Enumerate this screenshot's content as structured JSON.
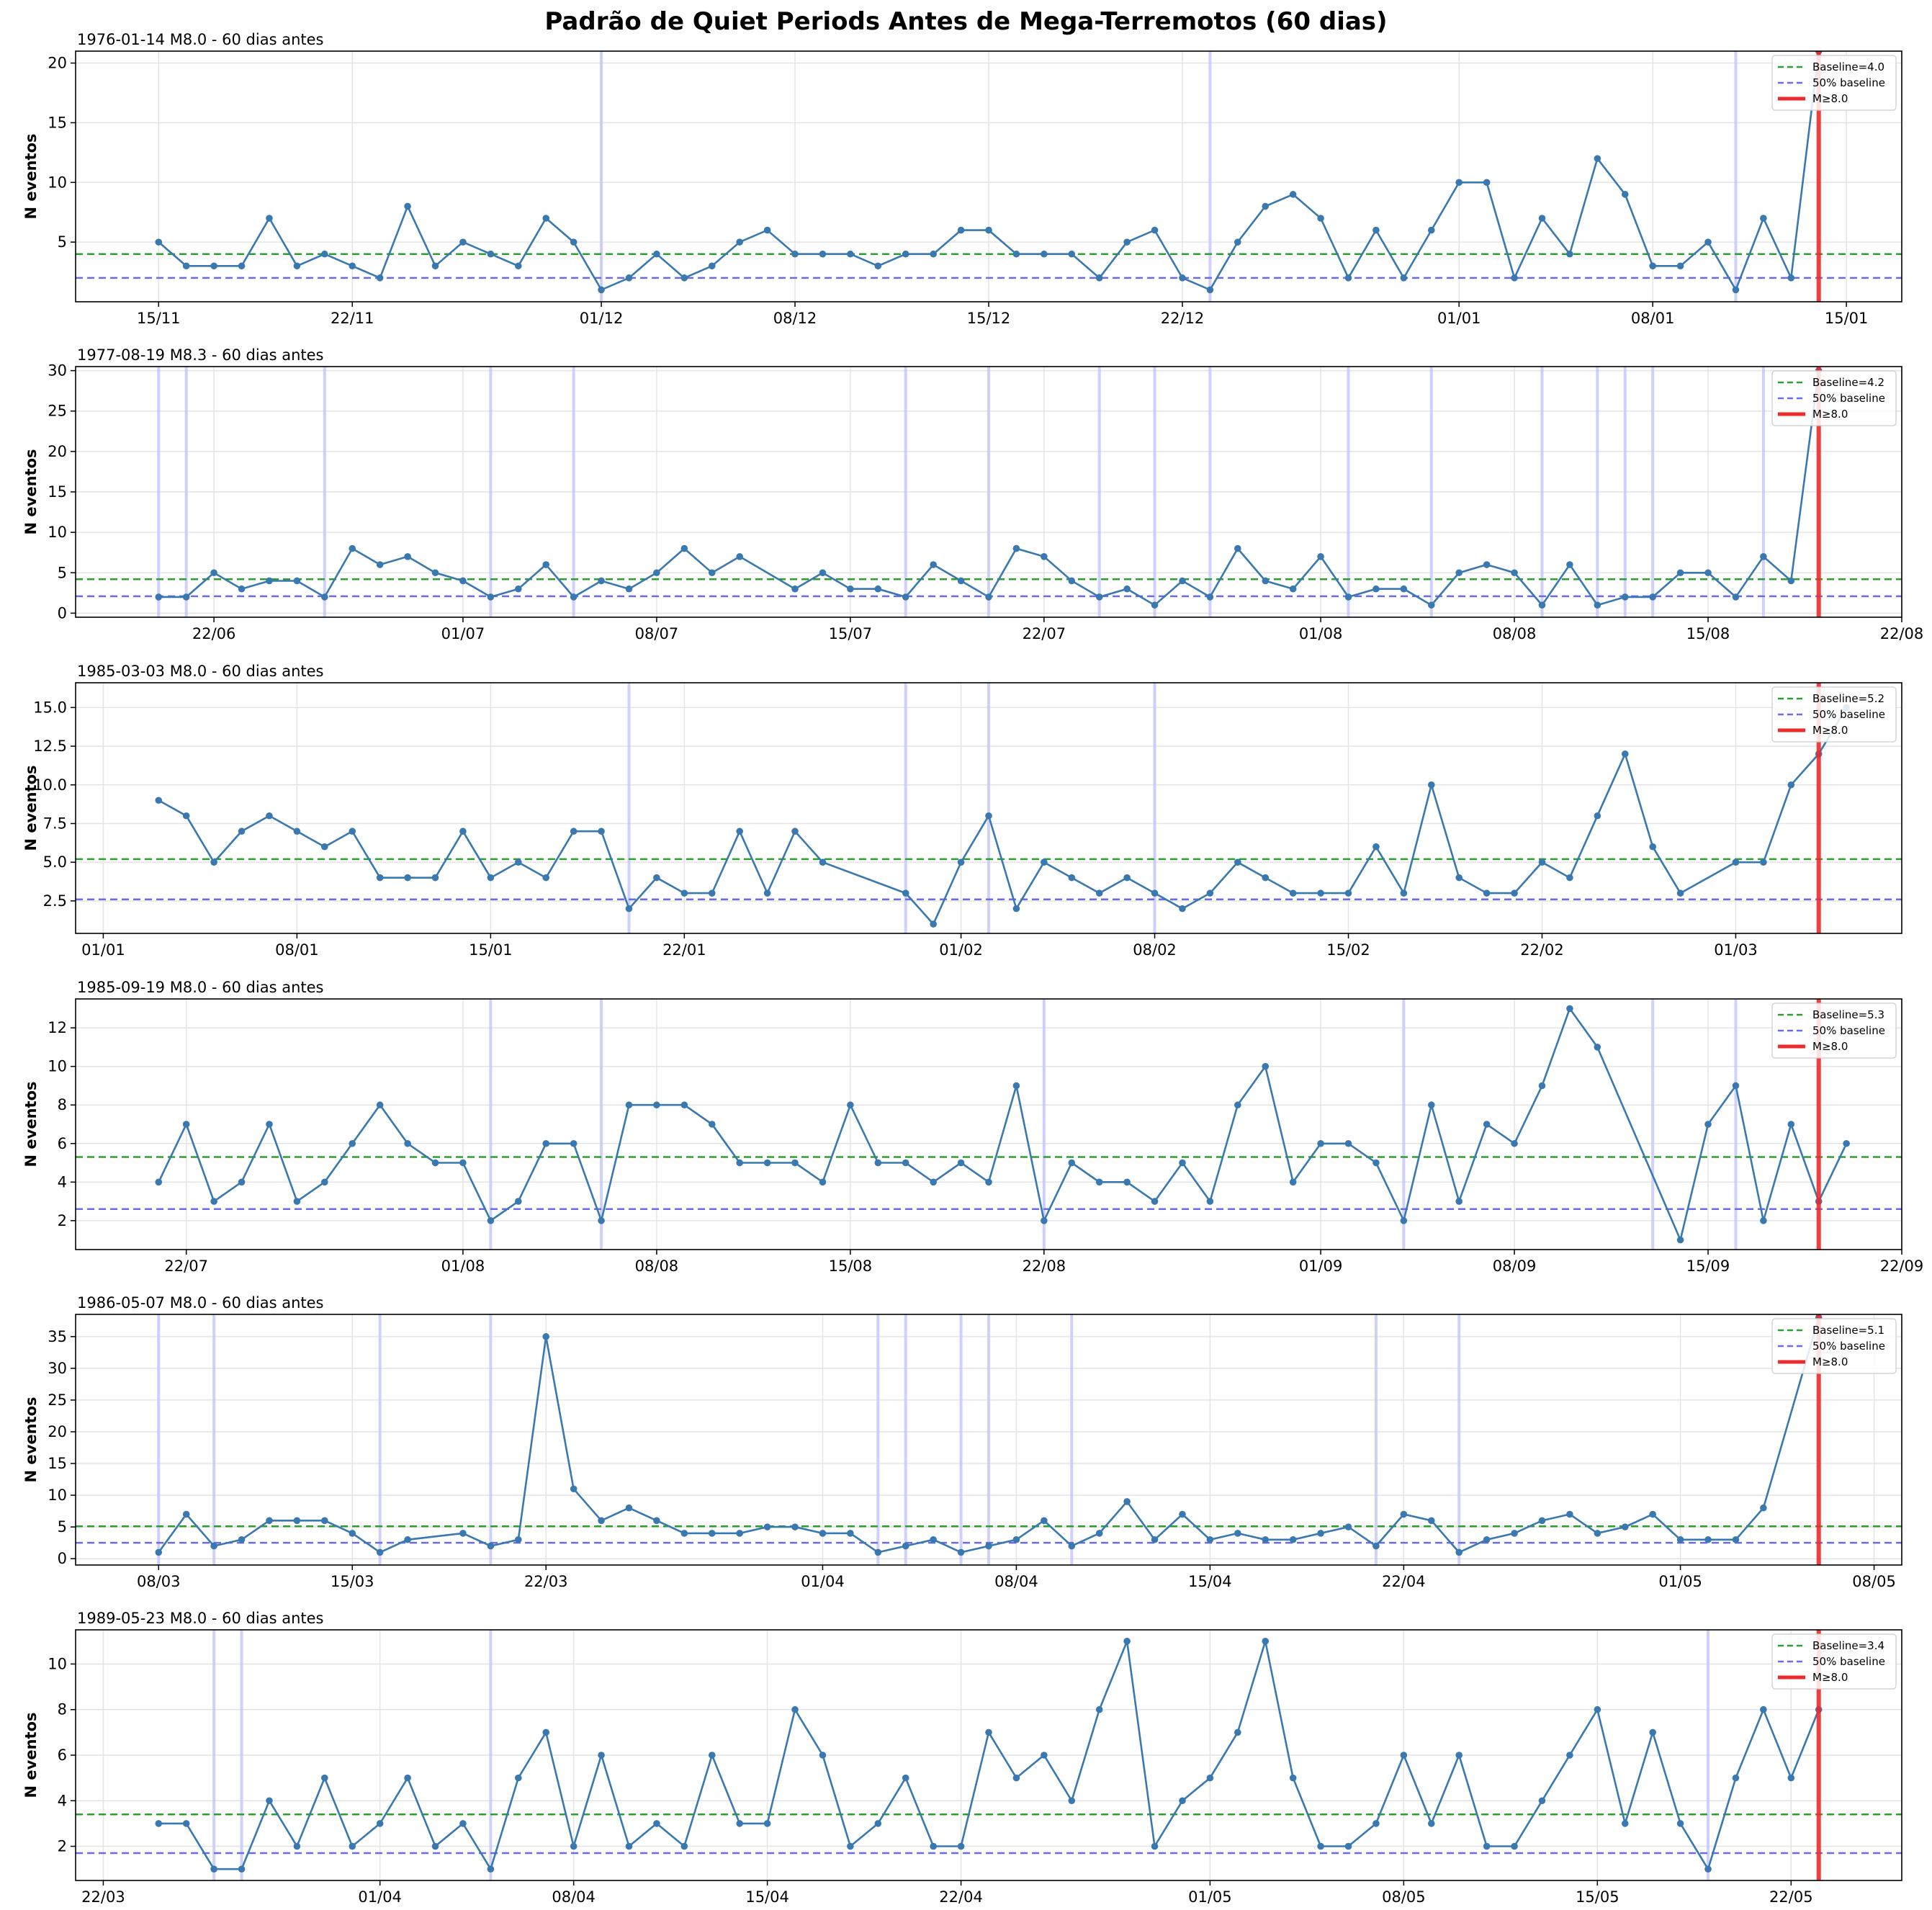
{
  "title": "Padrão de Quiet Periods Antes de Mega-Terremotos (60 dias)",
  "ylabel": "N eventos",
  "legend": {
    "baseline_prefix": "Baseline=",
    "half": "50% baseline",
    "event": "M≥8.0"
  },
  "colors": {
    "series": "#3a78b0",
    "baseline": "#2ca02c",
    "half": "#6b6bef",
    "event": "#ee2b2b",
    "quiet": "#c8c8ff",
    "grid": "#e4e4e4"
  },
  "chart_data": [
    {
      "type": "line",
      "title": "1976-01-14 M8.0 - 60 dias antes",
      "x_start": "1975-11-15",
      "event_day": 60,
      "x_range": [
        -3,
        63
      ],
      "ylim": [
        0,
        21
      ],
      "yticks": [
        5,
        10,
        15,
        20
      ],
      "xticks": [
        {
          "day": 0,
          "label": "15/11"
        },
        {
          "day": 7,
          "label": "22/11"
        },
        {
          "day": 16,
          "label": "01/12"
        },
        {
          "day": 23,
          "label": "08/12"
        },
        {
          "day": 30,
          "label": "15/12"
        },
        {
          "day": 37,
          "label": "22/12"
        },
        {
          "day": 47,
          "label": "01/01"
        },
        {
          "day": 54,
          "label": "08/01"
        },
        {
          "day": 61,
          "label": "15/01"
        }
      ],
      "baseline": 4.0,
      "half_baseline": 2.0,
      "quiet_days": [
        16,
        38,
        57
      ],
      "values": [
        5,
        3,
        3,
        3,
        7,
        3,
        4,
        3,
        2,
        8,
        3,
        5,
        4,
        3,
        7,
        5,
        1,
        2,
        4,
        2,
        3,
        5,
        6,
        4,
        4,
        4,
        3,
        4,
        4,
        6,
        6,
        4,
        4,
        4,
        2,
        5,
        6,
        2,
        1,
        5,
        8,
        9,
        7,
        2,
        6,
        2,
        6,
        10,
        10,
        2,
        7,
        4,
        12,
        9,
        3,
        3,
        5,
        1,
        7,
        2,
        21
      ]
    },
    {
      "type": "line",
      "title": "1977-08-19 M8.3 - 60 dias antes",
      "x_start": "1977-06-20",
      "event_day": 60,
      "x_range": [
        -3,
        63
      ],
      "ylim": [
        -0.5,
        30.5
      ],
      "yticks": [
        0,
        5,
        10,
        15,
        20,
        25,
        30
      ],
      "xticks": [
        {
          "day": 2,
          "label": "22/06"
        },
        {
          "day": 11,
          "label": "01/07"
        },
        {
          "day": 18,
          "label": "08/07"
        },
        {
          "day": 25,
          "label": "15/07"
        },
        {
          "day": 32,
          "label": "22/07"
        },
        {
          "day": 42,
          "label": "01/08"
        },
        {
          "day": 49,
          "label": "08/08"
        },
        {
          "day": 56,
          "label": "15/08"
        },
        {
          "day": 63,
          "label": "22/08"
        }
      ],
      "baseline": 4.2,
      "half_baseline": 2.1,
      "quiet_days": [
        0,
        1,
        6,
        12,
        15,
        27,
        30,
        34,
        36,
        38,
        43,
        46,
        50,
        52,
        53,
        54,
        58
      ],
      "values": [
        2,
        2,
        5,
        3,
        4,
        4,
        2,
        8,
        6,
        7,
        5,
        4,
        2,
        3,
        6,
        2,
        4,
        3,
        5,
        8,
        5,
        7,
        null,
        3,
        5,
        3,
        3,
        2,
        6,
        4,
        2,
        8,
        7,
        4,
        2,
        3,
        1,
        4,
        2,
        8,
        4,
        3,
        7,
        2,
        3,
        3,
        1,
        5,
        6,
        5,
        1,
        6,
        1,
        2,
        2,
        5,
        5,
        2,
        7,
        4,
        30
      ]
    },
    {
      "type": "line",
      "title": "1985-03-03 M8.0 - 60 dias antes",
      "x_start": "1985-01-03",
      "event_day": 60,
      "x_range": [
        -3,
        63
      ],
      "ylim": [
        0.4,
        16.6
      ],
      "yticks": [
        2.5,
        5.0,
        7.5,
        10.0,
        12.5,
        15.0
      ],
      "xticks": [
        {
          "day": -2,
          "label": "01/01"
        },
        {
          "day": 5,
          "label": "08/01"
        },
        {
          "day": 12,
          "label": "15/01"
        },
        {
          "day": 19,
          "label": "22/01"
        },
        {
          "day": 29,
          "label": "01/02"
        },
        {
          "day": 36,
          "label": "08/02"
        },
        {
          "day": 43,
          "label": "15/02"
        },
        {
          "day": 50,
          "label": "22/02"
        },
        {
          "day": 57,
          "label": "01/03"
        }
      ],
      "baseline": 5.2,
      "half_baseline": 2.6,
      "quiet_days": [
        17,
        27,
        30,
        36
      ],
      "values": [
        9,
        8,
        5,
        7,
        8,
        7,
        6,
        7,
        4,
        4,
        4,
        7,
        4,
        5,
        4,
        7,
        7,
        2,
        4,
        3,
        3,
        7,
        3,
        7,
        5,
        null,
        null,
        3,
        1,
        5,
        8,
        2,
        5,
        4,
        3,
        4,
        3,
        2,
        3,
        5,
        4,
        3,
        3,
        3,
        6,
        3,
        10,
        4,
        3,
        3,
        5,
        4,
        8,
        12,
        6,
        3,
        null,
        5,
        5,
        10,
        12,
        15
      ]
    },
    {
      "type": "line",
      "title": "1985-09-19 M8.0 - 60 dias antes",
      "x_start": "1985-07-21",
      "event_day": 60,
      "x_range": [
        -3,
        63
      ],
      "ylim": [
        0.5,
        13.5
      ],
      "yticks": [
        2,
        4,
        6,
        8,
        10,
        12
      ],
      "xticks": [
        {
          "day": 1,
          "label": "22/07"
        },
        {
          "day": 11,
          "label": "01/08"
        },
        {
          "day": 18,
          "label": "08/08"
        },
        {
          "day": 25,
          "label": "15/08"
        },
        {
          "day": 32,
          "label": "22/08"
        },
        {
          "day": 42,
          "label": "01/09"
        },
        {
          "day": 49,
          "label": "08/09"
        },
        {
          "day": 56,
          "label": "15/09"
        },
        {
          "day": 63,
          "label": "22/09"
        }
      ],
      "baseline": 5.3,
      "half_baseline": 2.6,
      "quiet_days": [
        12,
        16,
        32,
        45,
        54,
        57
      ],
      "values": [
        4,
        7,
        3,
        4,
        7,
        3,
        4,
        6,
        8,
        6,
        5,
        5,
        2,
        3,
        6,
        6,
        2,
        8,
        8,
        8,
        7,
        5,
        5,
        5,
        4,
        8,
        5,
        5,
        4,
        5,
        4,
        9,
        2,
        5,
        4,
        4,
        3,
        5,
        3,
        8,
        10,
        4,
        6,
        6,
        5,
        2,
        8,
        3,
        7,
        6,
        9,
        13,
        11,
        null,
        null,
        1,
        7,
        9,
        2,
        7,
        3,
        6
      ]
    },
    {
      "type": "line",
      "title": "1986-05-07 M8.0 - 60 dias antes",
      "x_start": "1986-03-08",
      "event_day": 60,
      "x_range": [
        -3,
        63
      ],
      "ylim": [
        -1,
        38.5
      ],
      "yticks": [
        0,
        5,
        10,
        15,
        20,
        25,
        30,
        35
      ],
      "xticks": [
        {
          "day": 0,
          "label": "08/03"
        },
        {
          "day": 7,
          "label": "15/03"
        },
        {
          "day": 14,
          "label": "22/03"
        },
        {
          "day": 24,
          "label": "01/04"
        },
        {
          "day": 31,
          "label": "08/04"
        },
        {
          "day": 38,
          "label": "15/04"
        },
        {
          "day": 45,
          "label": "22/04"
        },
        {
          "day": 55,
          "label": "01/05"
        },
        {
          "day": 62,
          "label": "08/05"
        }
      ],
      "baseline": 5.1,
      "half_baseline": 2.5,
      "quiet_days": [
        0,
        2,
        8,
        12,
        26,
        27,
        29,
        30,
        33,
        44,
        47
      ],
      "values": [
        1,
        7,
        2,
        3,
        6,
        6,
        6,
        4,
        1,
        3,
        null,
        4,
        2,
        3,
        35,
        11,
        6,
        8,
        6,
        4,
        4,
        4,
        5,
        5,
        4,
        4,
        1,
        2,
        3,
        1,
        2,
        3,
        6,
        2,
        4,
        9,
        3,
        7,
        3,
        4,
        3,
        3,
        4,
        5,
        2,
        7,
        6,
        1,
        3,
        4,
        6,
        7,
        4,
        5,
        7,
        3,
        3,
        3,
        8,
        null,
        38
      ]
    },
    {
      "type": "line",
      "title": "1989-05-23 M8.0 - 60 dias antes",
      "x_start": "1989-03-24",
      "event_day": 60,
      "x_range": [
        -3,
        63
      ],
      "ylim": [
        0.5,
        11.5
      ],
      "yticks": [
        2,
        4,
        6,
        8,
        10
      ],
      "xticks": [
        {
          "day": -2,
          "label": "22/03"
        },
        {
          "day": 8,
          "label": "01/04"
        },
        {
          "day": 15,
          "label": "08/04"
        },
        {
          "day": 22,
          "label": "15/04"
        },
        {
          "day": 29,
          "label": "22/04"
        },
        {
          "day": 38,
          "label": "01/05"
        },
        {
          "day": 45,
          "label": "08/05"
        },
        {
          "day": 52,
          "label": "15/05"
        },
        {
          "day": 59,
          "label": "22/05"
        }
      ],
      "baseline": 3.4,
      "half_baseline": 1.7,
      "quiet_days": [
        2,
        3,
        12,
        56
      ],
      "values": [
        3,
        3,
        1,
        1,
        4,
        2,
        5,
        2,
        3,
        5,
        2,
        3,
        1,
        5,
        7,
        2,
        6,
        2,
        3,
        2,
        6,
        3,
        3,
        8,
        6,
        2,
        3,
        5,
        2,
        2,
        7,
        5,
        6,
        4,
        8,
        11,
        2,
        4,
        5,
        7,
        11,
        5,
        2,
        2,
        3,
        6,
        3,
        6,
        2,
        2,
        4,
        6,
        8,
        3,
        7,
        3,
        1,
        5,
        8,
        5,
        8
      ]
    }
  ]
}
